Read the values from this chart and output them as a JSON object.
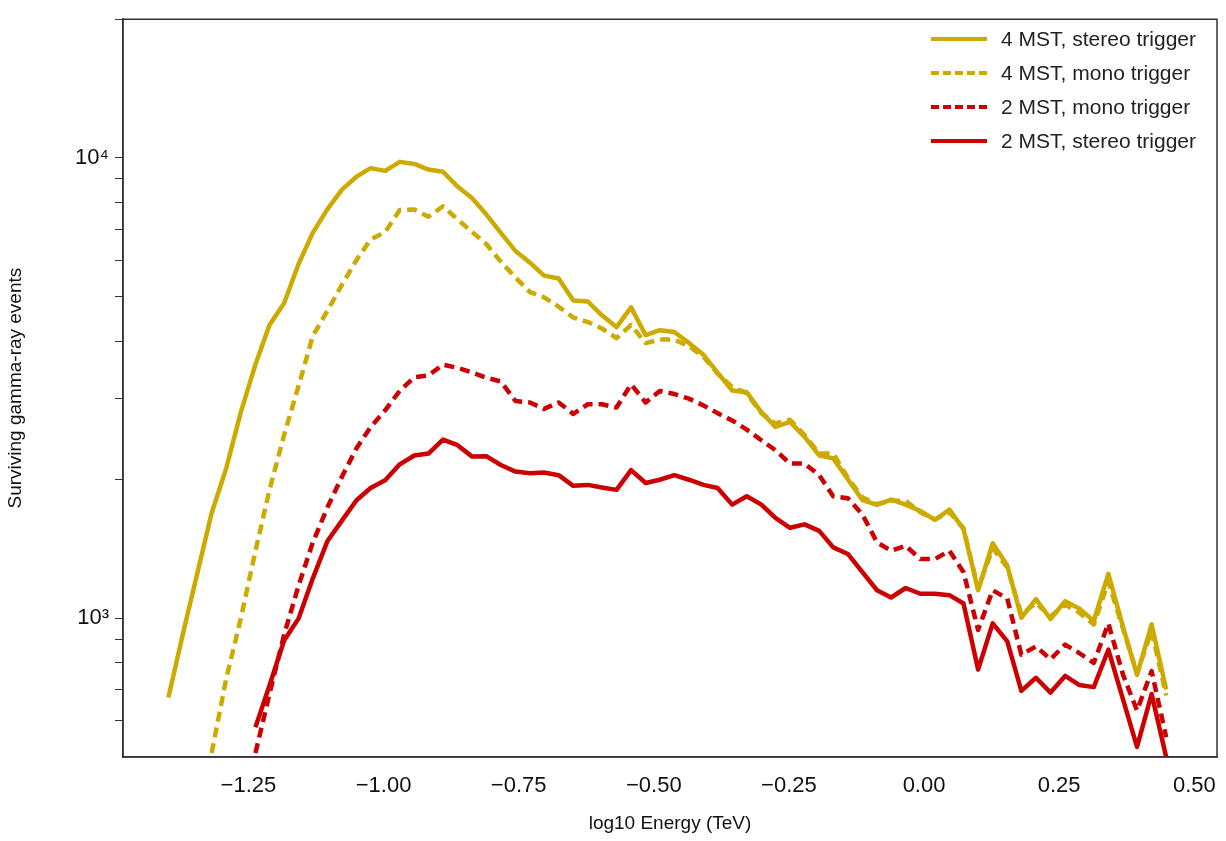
{
  "chart_data": {
    "type": "line",
    "xlabel": "log10 Energy (TeV)",
    "ylabel": "Surviving gamma-ray events",
    "log": "y",
    "legend": "top right",
    "marker": "none",
    "x": [
      -1.398,
      -1.371,
      -1.344,
      -1.318,
      -1.291,
      -1.264,
      -1.237,
      -1.211,
      -1.184,
      -1.157,
      -1.131,
      -1.104,
      -1.077,
      -1.05,
      -1.024,
      -0.997,
      -0.97,
      -0.943,
      -0.917,
      -0.89,
      -0.863,
      -0.836,
      -0.81,
      -0.783,
      -0.756,
      -0.729,
      -0.703,
      -0.676,
      -0.649,
      -0.622,
      -0.596,
      -0.569,
      -0.542,
      -0.515,
      -0.489,
      -0.462,
      -0.435,
      -0.408,
      -0.382,
      -0.355,
      -0.328,
      -0.301,
      -0.275,
      -0.248,
      -0.221,
      -0.194,
      -0.168,
      -0.141,
      -0.114,
      -0.087,
      -0.061,
      -0.034,
      -0.007,
      0.02,
      0.047,
      0.073,
      0.1,
      0.127,
      0.154,
      0.18,
      0.207,
      0.234,
      0.261,
      0.287,
      0.314,
      0.341,
      0.368,
      0.394,
      0.421,
      0.448
    ],
    "xlim": [
      -1.482,
      0.542
    ],
    "xticks": [
      {
        "value": -1.25,
        "label": "−1.25"
      },
      {
        "value": -1,
        "label": "−1.00"
      },
      {
        "value": -0.75,
        "label": "−0.75"
      },
      {
        "value": -0.5,
        "label": "−0.50"
      },
      {
        "value": -0.25,
        "label": "−0.25"
      },
      {
        "value": 0,
        "label": "0.00"
      },
      {
        "value": 0.25,
        "label": "0.25"
      },
      {
        "value": 0.5,
        "label": "0.50"
      }
    ],
    "ylim": [
      500,
      20000
    ],
    "yticks": [
      {
        "value": 600,
        "label": null
      },
      {
        "value": 700,
        "label": null
      },
      {
        "value": 800,
        "label": null
      },
      {
        "value": 900,
        "label": null
      },
      {
        "value": 1000,
        "label": "10³"
      },
      {
        "value": 2000,
        "label": null
      },
      {
        "value": 3000,
        "label": null
      },
      {
        "value": 4000,
        "label": null
      },
      {
        "value": 5000,
        "label": null
      },
      {
        "value": 6000,
        "label": null
      },
      {
        "value": 7000,
        "label": null
      },
      {
        "value": 8000,
        "label": null
      },
      {
        "value": 9000,
        "label": null
      },
      {
        "value": 10000,
        "label": "10⁴"
      },
      {
        "value": 20000,
        "label": null
      }
    ],
    "series": [
      {
        "name": "4 MST, stereo trigger",
        "color": "#ccaa00",
        "line_style": "solid",
        "values": [
          673,
          927,
          1260,
          1693,
          2118,
          2805,
          3557,
          4335,
          4833,
          5888,
          6870,
          7730,
          8530,
          9100,
          9500,
          9370,
          9800,
          9700,
          9430,
          9330,
          8660,
          8170,
          7540,
          6870,
          6280,
          5920,
          5550,
          5470,
          4900,
          4876,
          4550,
          4290,
          4735,
          4120,
          4225,
          4185,
          3964,
          3735,
          3418,
          3125,
          3097,
          2805,
          2605,
          2670,
          2478,
          2258,
          2225,
          2005,
          1807,
          1763,
          1810,
          1765,
          1712,
          1637,
          1722,
          1561,
          1151,
          1456,
          1302,
          1003,
          1101,
          997,
          1090,
          1051,
          987,
          1249,
          960,
          754,
          971,
          701
        ]
      },
      {
        "name": "4 MST, mono trigger",
        "color": "#ccaa00",
        "line_style": "dashed",
        "values": [
          null,
          null,
          null,
          510,
          740,
          1000,
          1400,
          1900,
          2500,
          3200,
          4100,
          4650,
          5300,
          6000,
          6650,
          6900,
          7700,
          7720,
          7450,
          7850,
          7350,
          6900,
          6500,
          5950,
          5500,
          5110,
          4980,
          4750,
          4500,
          4400,
          4260,
          4060,
          4335,
          3960,
          4030,
          4030,
          3900,
          3700,
          3400,
          3180,
          3080,
          2790,
          2650,
          2700,
          2500,
          2280,
          2280,
          2020,
          1830,
          1770,
          1800,
          1800,
          1700,
          1640,
          1700,
          1570,
          1160,
          1420,
          1290,
          1020,
          1080,
          1010,
          1070,
          1030,
          970,
          1200,
          950,
          760,
          940,
          680
        ]
      },
      {
        "name": "2 MST, mono trigger",
        "color": "#cc0000",
        "line_style": "dashed",
        "values": [
          null,
          null,
          null,
          null,
          null,
          null,
          510,
          685,
          921,
          1180,
          1460,
          1740,
          2030,
          2340,
          2600,
          2830,
          3120,
          3340,
          3370,
          3555,
          3500,
          3420,
          3330,
          3270,
          2965,
          2943,
          2850,
          2943,
          2780,
          2917,
          2917,
          2870,
          3222,
          2943,
          3118,
          3070,
          3000,
          2900,
          2790,
          2690,
          2570,
          2436,
          2319,
          2168,
          2168,
          2046,
          1841,
          1824,
          1680,
          1462,
          1402,
          1438,
          1345,
          1345,
          1402,
          1260,
          944,
          1151,
          1104,
          834,
          869,
          815,
          877,
          841,
          800,
          975,
          755,
          631,
          768,
          552
        ]
      },
      {
        "name": "2 MST, stereo trigger",
        "color": "#cc0000",
        "line_style": "solid",
        "values": [
          null,
          null,
          null,
          null,
          null,
          null,
          580,
          715,
          895,
          1000,
          1220,
          1470,
          1630,
          1805,
          1919,
          1995,
          2160,
          2258,
          2280,
          2445,
          2377,
          2245,
          2250,
          2153,
          2083,
          2066,
          2073,
          2046,
          1940,
          1949,
          1924,
          1901,
          2098,
          1968,
          2000,
          2046,
          2000,
          1949,
          1919,
          1766,
          1841,
          1766,
          1653,
          1573,
          1600,
          1549,
          1426,
          1380,
          1260,
          1151,
          1110,
          1164,
          1131,
          1131,
          1123,
          1077,
          774,
          975,
          891,
          696,
          743,
          690,
          750,
          717,
          709,
          855,
          668,
          526,
          685,
          500
        ]
      }
    ]
  }
}
